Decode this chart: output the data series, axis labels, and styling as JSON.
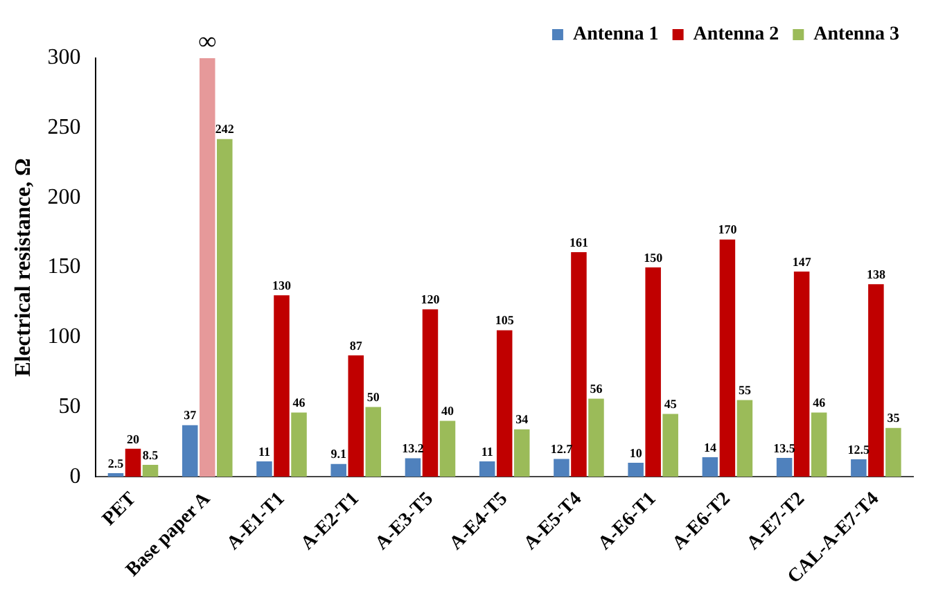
{
  "chart_data": {
    "type": "bar",
    "ylabel": "Electrical resistance, Ω",
    "categories": [
      "PET",
      "Base paper A",
      "A-E1-T1",
      "A-E2-T1",
      "A-E3-T5",
      "A-E4-T5",
      "A-E5-T4",
      "A-E6-T1",
      "A-E6-T2",
      "A-E7-T2",
      "CAL-A-E7-T4"
    ],
    "series": [
      {
        "name": "Antenna 1",
        "color": "#4f81bd",
        "values": [
          2.5,
          37,
          11,
          9.1,
          13.2,
          11,
          12.7,
          10,
          14,
          13.5,
          12.5
        ]
      },
      {
        "name": "Antenna 2",
        "color": "#c00000",
        "colors": [
          "#c00000",
          "#e6999a",
          "#c00000",
          "#c00000",
          "#c00000",
          "#c00000",
          "#c00000",
          "#c00000",
          "#c00000",
          "#c00000",
          "#c00000"
        ],
        "values": [
          20,
          300,
          130,
          87,
          120,
          105,
          161,
          150,
          170,
          147,
          138
        ],
        "value_labels": [
          "20",
          "∞",
          "130",
          "87",
          "120",
          "105",
          "161",
          "150",
          "170",
          "147",
          "138"
        ]
      },
      {
        "name": "Antenna 3",
        "color": "#9bbb59",
        "values": [
          8.5,
          242,
          46,
          50,
          40,
          34,
          56,
          45,
          55,
          46,
          35
        ]
      }
    ],
    "ylim": [
      0,
      300
    ],
    "yticks": [
      0,
      50,
      100,
      150,
      200,
      250,
      300
    ],
    "grid": false,
    "legend": "top right",
    "data_labels": true
  }
}
